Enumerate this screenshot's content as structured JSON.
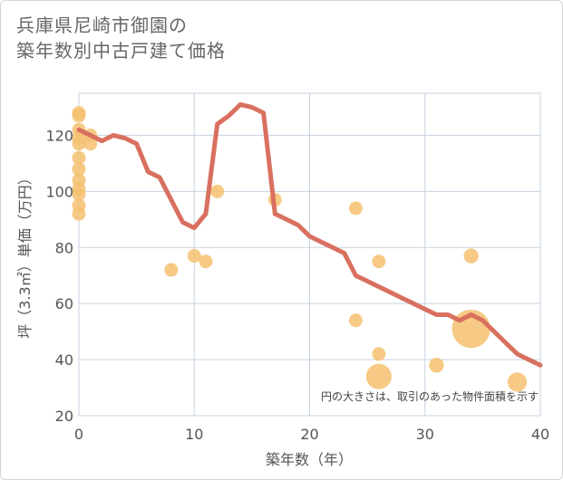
{
  "chart_data": {
    "type": "scatter",
    "title_line1": "兵庫県尼崎市御園の",
    "title_line2": "築年数別中古戸建て価格",
    "xlabel": "築年数（年）",
    "ylabel": "坪（3.3㎡）単価（万円）",
    "xlim": [
      0,
      40
    ],
    "ylim": [
      20,
      135
    ],
    "xticks": [
      0,
      10,
      20,
      30,
      40
    ],
    "yticks": [
      20,
      40,
      60,
      80,
      100,
      120
    ],
    "grid": true,
    "note": "円の大きさは、取引のあった物件面積を示す",
    "colors": {
      "bubble": "#f5c170",
      "line": "#d9705f",
      "grid": "#c7d3e0",
      "plot_bg": "#ffffff"
    },
    "bubbles": [
      {
        "x": 0,
        "y": 128,
        "size": 1
      },
      {
        "x": 0,
        "y": 127,
        "size": 1
      },
      {
        "x": 0,
        "y": 122,
        "size": 1
      },
      {
        "x": 0,
        "y": 119,
        "size": 1
      },
      {
        "x": 0,
        "y": 117,
        "size": 1
      },
      {
        "x": 0,
        "y": 112,
        "size": 1
      },
      {
        "x": 0,
        "y": 108,
        "size": 1
      },
      {
        "x": 0,
        "y": 104,
        "size": 1
      },
      {
        "x": 0,
        "y": 101,
        "size": 1
      },
      {
        "x": 0,
        "y": 99,
        "size": 1
      },
      {
        "x": 0,
        "y": 95,
        "size": 1
      },
      {
        "x": 0,
        "y": 92,
        "size": 1
      },
      {
        "x": 1,
        "y": 120,
        "size": 1
      },
      {
        "x": 1,
        "y": 117,
        "size": 1
      },
      {
        "x": 8,
        "y": 72,
        "size": 1
      },
      {
        "x": 10,
        "y": 77,
        "size": 1
      },
      {
        "x": 11,
        "y": 75,
        "size": 1
      },
      {
        "x": 12,
        "y": 100,
        "size": 1
      },
      {
        "x": 17,
        "y": 97,
        "size": 1
      },
      {
        "x": 24,
        "y": 94,
        "size": 1
      },
      {
        "x": 24,
        "y": 54,
        "size": 1
      },
      {
        "x": 26,
        "y": 75,
        "size": 1
      },
      {
        "x": 26,
        "y": 42,
        "size": 1
      },
      {
        "x": 26,
        "y": 34,
        "size": 3.5
      },
      {
        "x": 31,
        "y": 38,
        "size": 1.2
      },
      {
        "x": 34,
        "y": 77,
        "size": 1.2
      },
      {
        "x": 34,
        "y": 51,
        "size": 8
      },
      {
        "x": 38,
        "y": 32,
        "size": 2
      }
    ],
    "trend": {
      "x": [
        0,
        1,
        2,
        3,
        4,
        5,
        6,
        7,
        8,
        9,
        10,
        11,
        12,
        13,
        14,
        15,
        16,
        17,
        18,
        19,
        20,
        21,
        22,
        23,
        24,
        25,
        26,
        27,
        28,
        29,
        30,
        31,
        32,
        33,
        34,
        35,
        36,
        37,
        38,
        39,
        40
      ],
      "y": [
        122,
        120,
        118,
        120,
        119,
        117,
        107,
        105,
        97,
        89,
        87,
        92,
        124,
        127,
        131,
        130,
        128,
        92,
        90,
        88,
        84,
        82,
        80,
        78,
        70,
        68,
        66,
        64,
        62,
        60,
        58,
        56,
        56,
        54,
        56,
        54,
        50,
        46,
        42,
        40,
        38
      ]
    }
  }
}
